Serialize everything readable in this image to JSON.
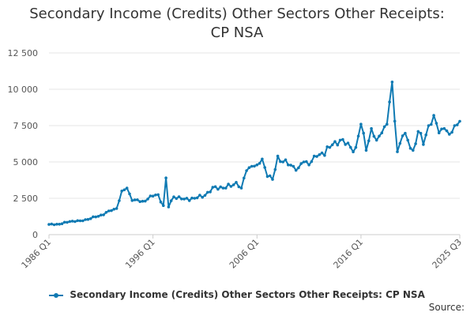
{
  "chart_data": {
    "type": "line",
    "title_line1": "Secondary Income (Credits) Other Sectors Other Receipts:",
    "title_line2": "CP NSA",
    "xlabel": "",
    "ylabel": "",
    "ylim": [
      0,
      12500
    ],
    "yticks": [
      0,
      2500,
      5000,
      7500,
      10000,
      12500
    ],
    "ytick_labels": [
      "0",
      "2 500",
      "5 000",
      "7 500",
      "10 000",
      "12 500"
    ],
    "xticks": [
      "1986 Q1",
      "1996 Q1",
      "2006 Q1",
      "2016 Q1",
      "2025 Q3"
    ],
    "xrange": [
      "1986 Q1",
      "2025 Q3"
    ],
    "grid": true,
    "legend_position": "bottom",
    "series": [
      {
        "name": "Secondary Income (Credits) Other Sectors Other Receipts: CP NSA",
        "color": "#0f7ab3",
        "anchors": [
          [
            "1986 Q1",
            700
          ],
          [
            "1987 Q1",
            720
          ],
          [
            "1988 Q1",
            900
          ],
          [
            "1989 Q1",
            950
          ],
          [
            "1990 Q1",
            1100
          ],
          [
            "1991 Q1",
            1350
          ],
          [
            "1992 Q1",
            1650
          ],
          [
            "1992 Q3",
            1800
          ],
          [
            "1993 Q1",
            3000
          ],
          [
            "1993 Q3",
            3200
          ],
          [
            "1994 Q1",
            2350
          ],
          [
            "1995 Q1",
            2300
          ],
          [
            "1995 Q3",
            2450
          ],
          [
            "1996 Q1",
            2650
          ],
          [
            "1996 Q3",
            2750
          ],
          [
            "1997 Q1",
            2000
          ],
          [
            "1997 Q2",
            3900
          ],
          [
            "1997 Q3",
            1900
          ],
          [
            "1998 Q1",
            2600
          ],
          [
            "1999 Q1",
            2450
          ],
          [
            "2000 Q1",
            2500
          ],
          [
            "2001 Q1",
            2700
          ],
          [
            "2002 Q1",
            3300
          ],
          [
            "2003 Q1",
            3200
          ],
          [
            "2004 Q1",
            3600
          ],
          [
            "2004 Q3",
            3200
          ],
          [
            "2005 Q1",
            4400
          ],
          [
            "2005 Q3",
            4700
          ],
          [
            "2006 Q1",
            4800
          ],
          [
            "2006 Q3",
            5200
          ],
          [
            "2007 Q1",
            4000
          ],
          [
            "2007 Q3",
            3800
          ],
          [
            "2008 Q1",
            5400
          ],
          [
            "2008 Q3",
            5000
          ],
          [
            "2009 Q1",
            4800
          ],
          [
            "2010 Q1",
            4600
          ],
          [
            "2010 Q3",
            5000
          ],
          [
            "2011 Q1",
            4800
          ],
          [
            "2011 Q3",
            5400
          ],
          [
            "2012 Q1",
            5500
          ],
          [
            "2013 Q1",
            6000
          ],
          [
            "2013 Q3",
            6400
          ],
          [
            "2014 Q1",
            6500
          ],
          [
            "2014 Q3",
            6200
          ],
          [
            "2015 Q1",
            6000
          ],
          [
            "2015 Q3",
            6000
          ],
          [
            "2016 Q1",
            7600
          ],
          [
            "2016 Q3",
            5800
          ],
          [
            "2017 Q1",
            7300
          ],
          [
            "2017 Q3",
            6500
          ],
          [
            "2018 Q1",
            7000
          ],
          [
            "2018 Q3",
            7600
          ],
          [
            "2019 Q1",
            10500
          ],
          [
            "2019 Q3",
            5700
          ],
          [
            "2020 Q1",
            6800
          ],
          [
            "2020 Q3",
            6500
          ],
          [
            "2021 Q1",
            5800
          ],
          [
            "2021 Q3",
            7100
          ],
          [
            "2022 Q1",
            6200
          ],
          [
            "2022 Q3",
            7500
          ],
          [
            "2023 Q1",
            8200
          ],
          [
            "2023 Q3",
            7000
          ],
          [
            "2024 Q1",
            7300
          ],
          [
            "2024 Q3",
            6900
          ],
          [
            "2025 Q1",
            7500
          ],
          [
            "2025 Q3",
            7800
          ]
        ]
      }
    ]
  },
  "source_label": "Source:"
}
